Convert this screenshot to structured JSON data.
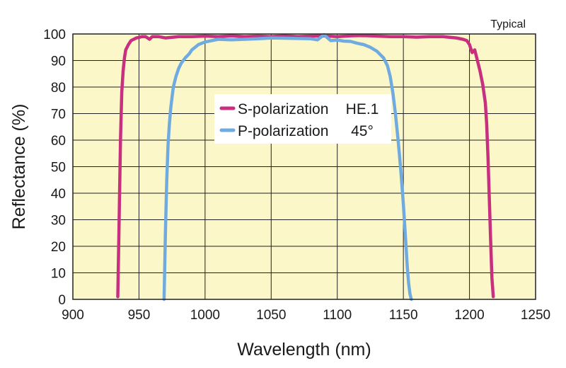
{
  "chart_data": {
    "type": "line",
    "title": "",
    "note": "Typical",
    "xlabel": "Wavelength (nm)",
    "ylabel": "Reflectance (%)",
    "xlim": [
      900,
      1250
    ],
    "ylim": [
      0,
      100
    ],
    "xticks": [
      900,
      950,
      1000,
      1050,
      1100,
      1150,
      1200,
      1250
    ],
    "yticks": [
      0,
      10,
      20,
      30,
      40,
      50,
      60,
      70,
      80,
      90,
      100
    ],
    "grid": true,
    "legend_position": "center",
    "legend_extra": [
      "HE.1",
      "45°"
    ],
    "colors": {
      "plot_bg": "#fbf7c8",
      "grid": "#222222",
      "s": "#c8307f",
      "p": "#6fabe0"
    },
    "series": [
      {
        "name": "S-polarization",
        "x": [
          934,
          935,
          936,
          937,
          938,
          939,
          940,
          942,
          944,
          946,
          948,
          950,
          952,
          955,
          958,
          960,
          965,
          970,
          980,
          990,
          1000,
          1010,
          1020,
          1030,
          1040,
          1050,
          1060,
          1070,
          1080,
          1090,
          1100,
          1110,
          1120,
          1130,
          1140,
          1150,
          1160,
          1170,
          1180,
          1190,
          1195,
          1198,
          1200,
          1202,
          1204,
          1206,
          1208,
          1210,
          1212,
          1213,
          1214,
          1215,
          1216,
          1217,
          1218
        ],
        "y": [
          1,
          30,
          60,
          78,
          86,
          91,
          94,
          96,
          97.5,
          98,
          98.5,
          98.7,
          99,
          99,
          98,
          99,
          99,
          98.5,
          99,
          99,
          99.2,
          99,
          99.3,
          99,
          99.2,
          99,
          99.3,
          99,
          99.2,
          99.3,
          99,
          99.3,
          99.4,
          99.2,
          99,
          99,
          98.8,
          99,
          99,
          98.5,
          98,
          97.5,
          96,
          93,
          94,
          90,
          86,
          81,
          74,
          66,
          54,
          38,
          22,
          8,
          1
        ]
      },
      {
        "name": "P-polarization",
        "x": [
          969,
          970,
          971,
          972,
          973,
          974,
          975,
          976,
          978,
          980,
          982,
          985,
          988,
          990,
          995,
          1000,
          1010,
          1020,
          1030,
          1040,
          1050,
          1060,
          1070,
          1080,
          1085,
          1090,
          1095,
          1100,
          1105,
          1110,
          1115,
          1120,
          1125,
          1130,
          1135,
          1138,
          1140,
          1142,
          1144,
          1146,
          1148,
          1150,
          1151,
          1152,
          1153,
          1154,
          1155,
          1156
        ],
        "y": [
          0,
          25,
          45,
          58,
          66,
          72,
          76,
          80,
          84,
          87,
          89,
          91,
          92.5,
          94,
          96,
          97,
          98,
          97.8,
          98,
          98.2,
          98.5,
          98.4,
          98.3,
          98.2,
          97.8,
          99.7,
          97.5,
          97.7,
          97.3,
          97.2,
          96.5,
          96,
          95,
          93.5,
          91,
          88,
          84,
          78,
          70,
          60,
          49,
          36,
          28,
          20,
          12,
          6,
          2,
          0
        ]
      }
    ]
  }
}
